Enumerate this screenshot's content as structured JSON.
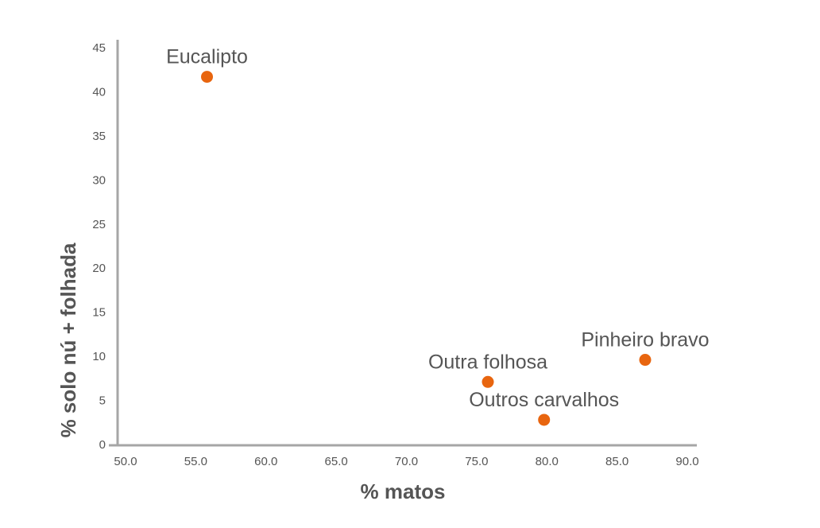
{
  "chart_data": {
    "type": "scatter",
    "title": "",
    "xlabel": "% matos",
    "ylabel": "% solo nú + folhada",
    "xlim": [
      50,
      90
    ],
    "ylim": [
      0,
      45
    ],
    "x_ticks": [
      "50.0",
      "55.0",
      "60.0",
      "65.0",
      "70.0",
      "75.0",
      "80.0",
      "85.0",
      "90.0"
    ],
    "y_ticks": [
      "0",
      "5",
      "10",
      "15",
      "20",
      "25",
      "30",
      "35",
      "40",
      "45"
    ],
    "grid": false,
    "marker_color": "#E8650F",
    "axis_color": "#a6a6a6",
    "points": [
      {
        "label": "Eucalipto",
        "x": 55.8,
        "y": 41.7
      },
      {
        "label": "Outra folhosa",
        "x": 75.8,
        "y": 7.1
      },
      {
        "label": "Outros carvalhos",
        "x": 79.8,
        "y": 2.8
      },
      {
        "label": "Pinheiro bravo",
        "x": 87.0,
        "y": 9.6
      }
    ]
  }
}
